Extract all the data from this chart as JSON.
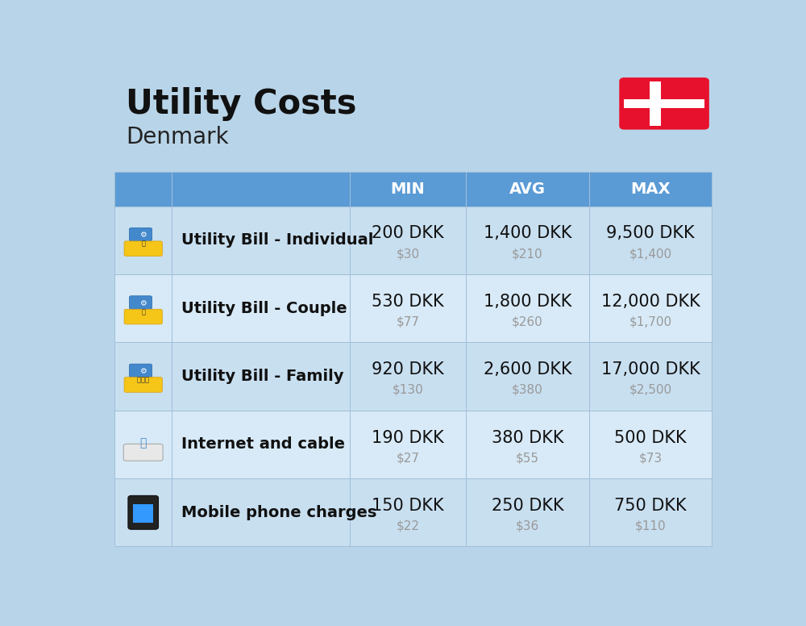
{
  "title": "Utility Costs",
  "subtitle": "Denmark",
  "background_color": "#b8d4e8",
  "header_bg_color": "#5b9bd5",
  "header_text_color": "#ffffff",
  "row_bg_color_1": "#c8dff0",
  "row_bg_color_2": "#d8eaf7",
  "grid_line_color": "#a0bfd8",
  "rows": [
    {
      "label": "Utility Bill - Individual",
      "min_dkk": "200 DKK",
      "min_usd": "$30",
      "avg_dkk": "1,400 DKK",
      "avg_usd": "$210",
      "max_dkk": "9,500 DKK",
      "max_usd": "$1,400"
    },
    {
      "label": "Utility Bill - Couple",
      "min_dkk": "530 DKK",
      "min_usd": "$77",
      "avg_dkk": "1,800 DKK",
      "avg_usd": "$260",
      "max_dkk": "12,000 DKK",
      "max_usd": "$1,700"
    },
    {
      "label": "Utility Bill - Family",
      "min_dkk": "920 DKK",
      "min_usd": "$130",
      "avg_dkk": "2,600 DKK",
      "avg_usd": "$380",
      "max_dkk": "17,000 DKK",
      "max_usd": "$2,500"
    },
    {
      "label": "Internet and cable",
      "min_dkk": "190 DKK",
      "min_usd": "$27",
      "avg_dkk": "380 DKK",
      "avg_usd": "$55",
      "max_dkk": "500 DKK",
      "max_usd": "$73"
    },
    {
      "label": "Mobile phone charges",
      "min_dkk": "150 DKK",
      "min_usd": "$22",
      "avg_dkk": "250 DKK",
      "avg_usd": "$36",
      "max_dkk": "750 DKK",
      "max_usd": "$110"
    }
  ],
  "dkk_fontsize": 15,
  "usd_fontsize": 11,
  "label_fontsize": 14,
  "header_fontsize": 14,
  "title_fontsize": 30,
  "subtitle_fontsize": 20
}
